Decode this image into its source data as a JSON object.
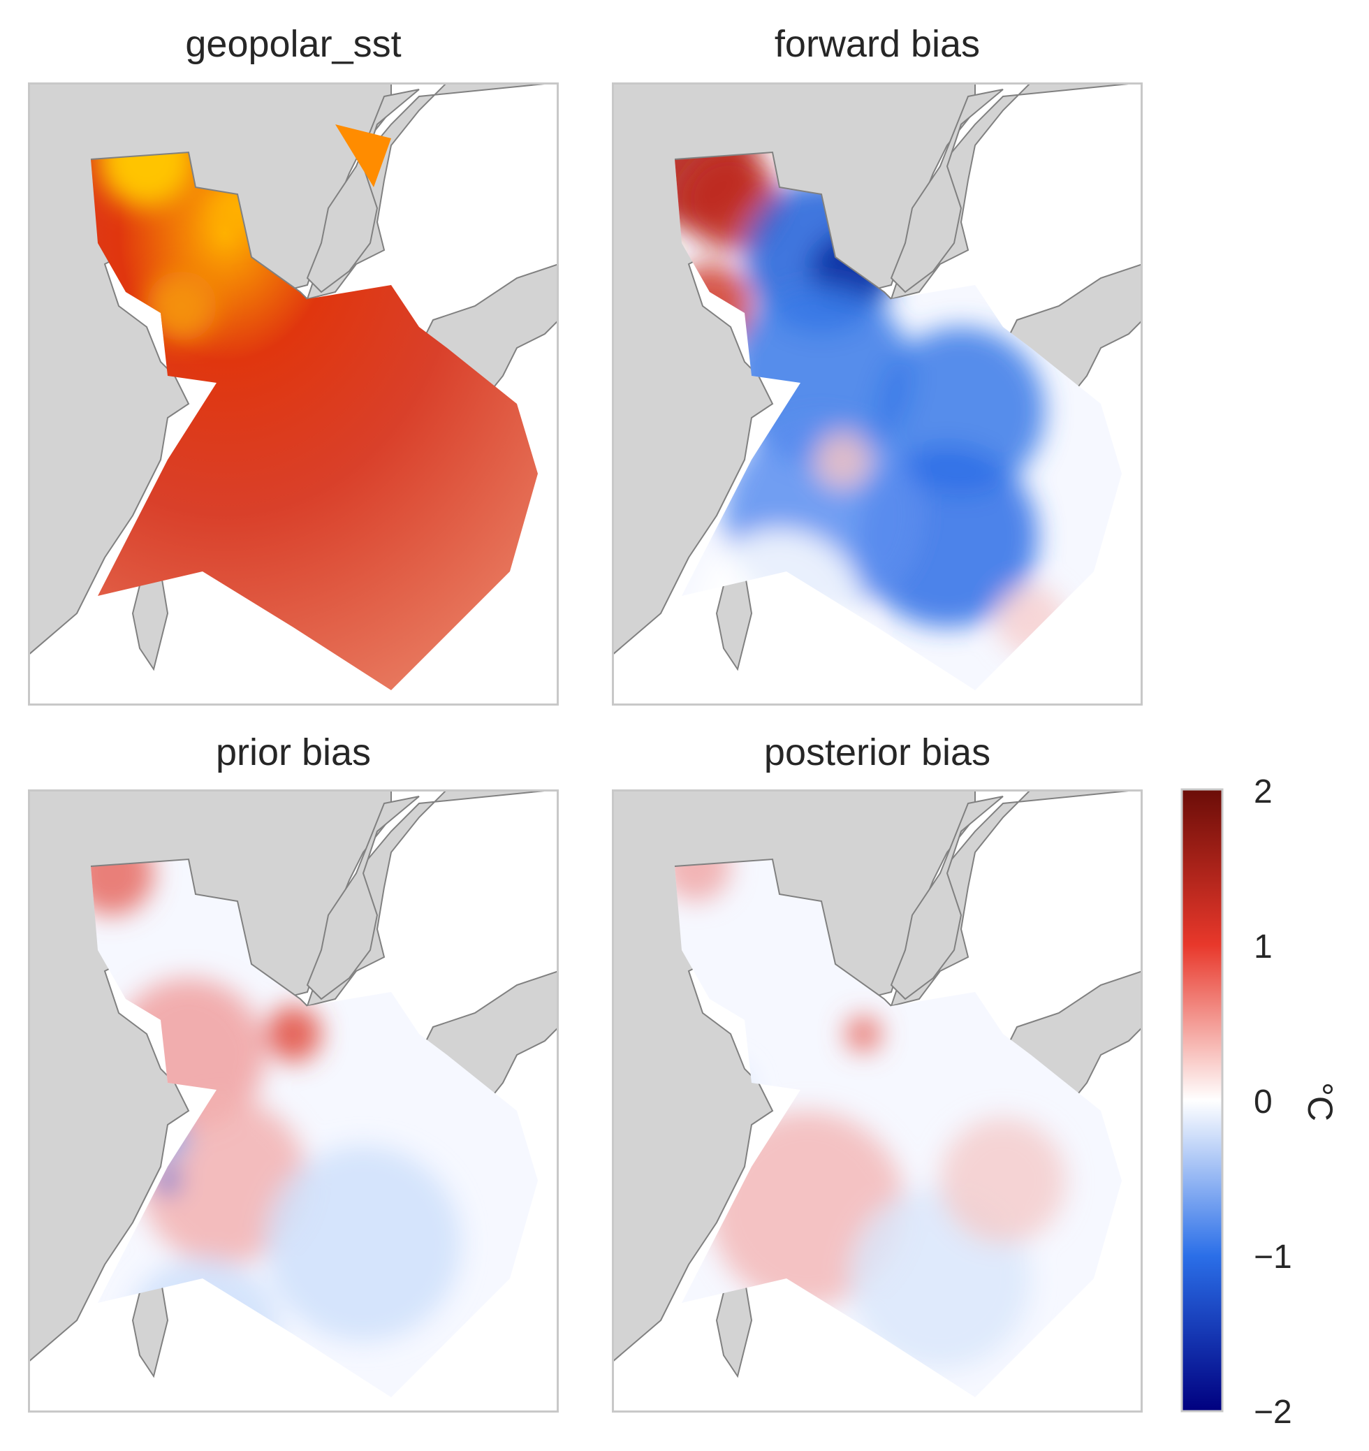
{
  "figure": {
    "panels": [
      {
        "id": "geopolar",
        "title": "geopolar_sst"
      },
      {
        "id": "forward",
        "title": "forward bias"
      },
      {
        "id": "prior",
        "title": "prior bias"
      },
      {
        "id": "posterior",
        "title": "posterior bias"
      }
    ],
    "colorbar": {
      "label": "°C",
      "ticks": [
        "2",
        "1",
        "0",
        "−1",
        "−2"
      ],
      "range": [
        -2,
        2
      ],
      "colors": [
        "#00007f",
        "#2b6fe8",
        "#ffffff",
        "#e8382b",
        "#6b0d08"
      ]
    },
    "land_color": "#d3d3d3",
    "coast_color": "#808080"
  }
}
